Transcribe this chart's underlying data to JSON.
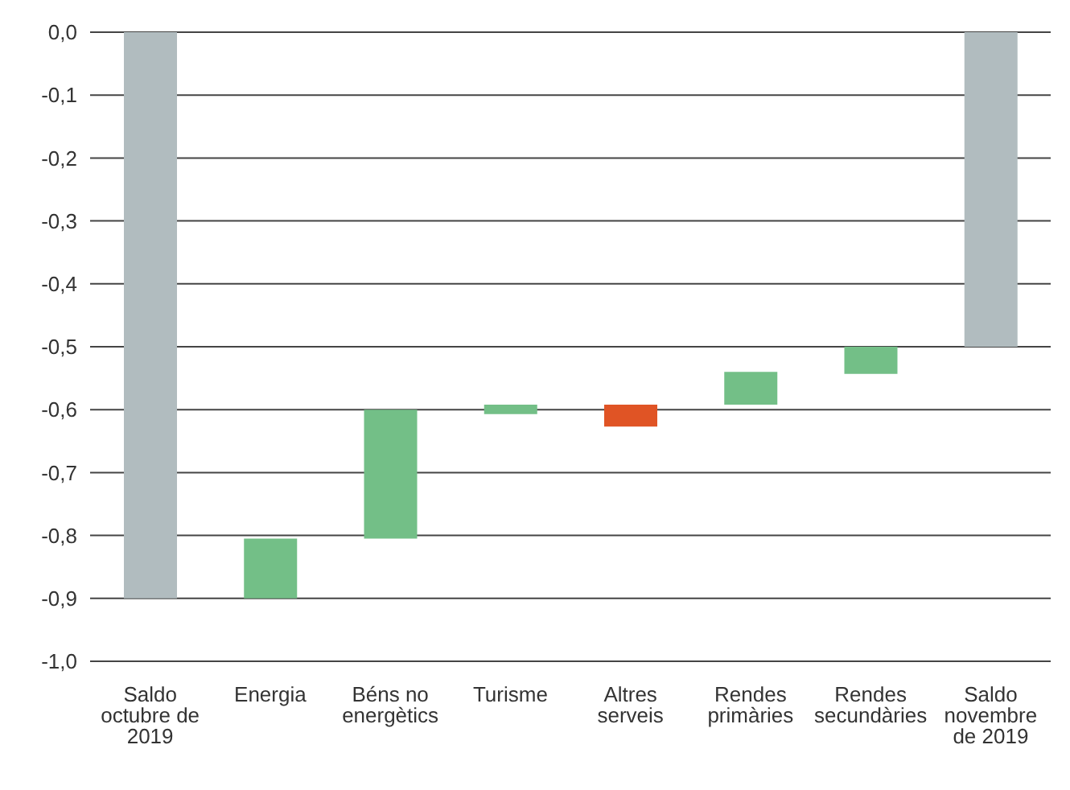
{
  "chart_data": {
    "type": "bar",
    "categories": [
      "Saldo octubre de 2019",
      "Energia",
      "Béns no energètics",
      "Turisme",
      "Altres serveis",
      "Rendes primàries",
      "Rendes secundàries",
      "Saldo novembre de 2019"
    ],
    "values": [
      -0.9,
      0.095,
      0.205,
      0.015,
      -0.035,
      0.052,
      0.043,
      -0.5
    ],
    "base": [
      0,
      -0.9,
      -0.805,
      -0.607,
      -0.592,
      -0.592,
      -0.543,
      0
    ],
    "colors": [
      "#b1bcbf",
      "#73bf87",
      "#73bf87",
      "#73bf87",
      "#e05425",
      "#73bf87",
      "#73bf87",
      "#b1bcbf"
    ],
    "ylim": [
      -1,
      0
    ],
    "yticks": [
      {
        "value": -1,
        "label": "-1,0"
      },
      {
        "value": -0.9,
        "label": "-0,9"
      },
      {
        "value": -0.8,
        "label": "-0,8"
      },
      {
        "value": -0.7,
        "label": "-0,7"
      },
      {
        "value": -0.6,
        "label": "-0,6"
      },
      {
        "value": -0.5,
        "label": "-0,5"
      },
      {
        "value": -0.4,
        "label": "-0,4"
      },
      {
        "value": -0.3,
        "label": "-0,3"
      },
      {
        "value": -0.2,
        "label": "-0,2"
      },
      {
        "value": -0.1,
        "label": "-0,1"
      },
      {
        "value": 0,
        "label": "0,0"
      }
    ],
    "grid": "y"
  }
}
